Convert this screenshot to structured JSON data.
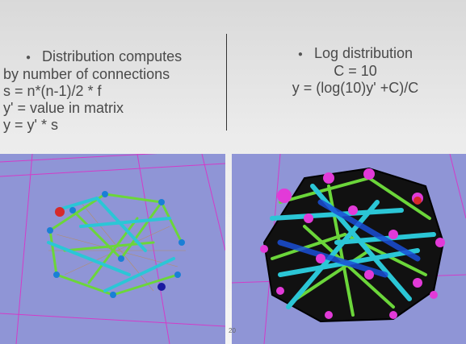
{
  "left_list": {
    "bullet_line": "Distribution computes",
    "lines": [
      "by number of connections",
      "s = n*(n-1)/2 * f",
      "y' = value in matrix",
      "y = y' * s"
    ]
  },
  "right_list": {
    "bullet_line": "Log distribution",
    "lines": [
      "C = 10",
      "y = (log(10)y' +C)/C"
    ]
  },
  "page_number": "20",
  "colors": {
    "viewport_background": "#8f95d6",
    "grid_lines": "#d23cc8",
    "left_nodes": "#1a7fd6",
    "right_nodes": "#e23ad8",
    "edges_green": "#6bd63a",
    "edges_cyan": "#2bc6d6"
  }
}
